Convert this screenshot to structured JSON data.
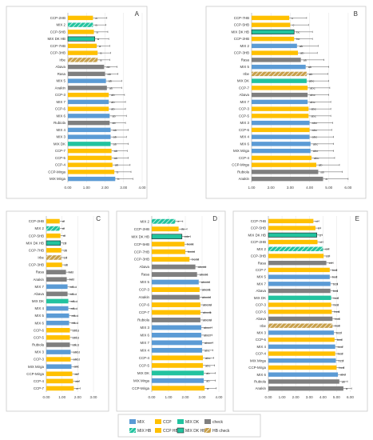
{
  "colors": {
    "MIX": "#5B9BD5",
    "CCP": "#FFC000",
    "MIX DK": "#22C39F",
    "check": "#7F7F7F",
    "MIX HB": "#22C39F",
    "CCP HB": "#FFC000",
    "MIX DK HB": "#22C39F",
    "HB check": "#C8A04B"
  },
  "legend": [
    {
      "key": "MIX",
      "label": "MIX",
      "hatch": false
    },
    {
      "key": "CCP",
      "label": "CCP",
      "hatch": false
    },
    {
      "key": "MIX DK",
      "label": "MIX DK",
      "hatch": false
    },
    {
      "key": "check",
      "label": "check",
      "hatch": false
    },
    {
      "key": "MIX HB",
      "label": "MIX HB",
      "hatch": true
    },
    {
      "key": "CCP HB",
      "label": "CCP HB",
      "hatch": false
    },
    {
      "key": "MIX DK HB",
      "label": "MIX DK HB",
      "hatch": false
    },
    {
      "key": "HB check",
      "label": "HB check",
      "hatch": true
    }
  ],
  "chart_data": [
    {
      "panel": "A",
      "type": "bar",
      "orientation": "horizontal",
      "xlim": [
        0,
        4
      ],
      "xticks": [
        "0.00",
        "1.00",
        "2.00",
        "3.00",
        "4.00"
      ],
      "categories": [
        "CCP-2HB",
        "MIX 2",
        "CCP-5HB",
        "MIX DK HB",
        "CCP-7HB",
        "CCP-3HB",
        "Irbe",
        "Abava",
        "Rasa",
        "MIX 5",
        "Anakin",
        "CCP-3",
        "MIX 7",
        "CCP-6",
        "MIX 6",
        "Rubiola",
        "MIX 4",
        "MIX 3",
        "MIX DK",
        "CCP-7",
        "CCP-5",
        "CCP-4",
        "CCP-Mirga",
        "MIX Mirga"
      ],
      "groups": [
        "CCP HB",
        "MIX HB",
        "CCP HB",
        "MIX DK HB",
        "CCP HB",
        "CCP HB",
        "HB check",
        "check",
        "check",
        "MIX",
        "check",
        "CCP",
        "MIX",
        "CCP",
        "MIX",
        "check",
        "MIX",
        "MIX",
        "MIX DK",
        "CCP",
        "CCP",
        "CCP",
        "CCP",
        "MIX"
      ],
      "values": [
        1.35,
        1.35,
        1.4,
        1.45,
        1.55,
        1.6,
        1.6,
        1.95,
        2.0,
        2.05,
        2.1,
        2.2,
        2.2,
        2.2,
        2.25,
        2.25,
        2.3,
        2.3,
        2.3,
        2.35,
        2.35,
        2.4,
        2.5,
        2.55
      ],
      "errors": [
        0.75,
        0.7,
        0.75,
        0.75,
        0.7,
        0.7,
        0.65,
        0.7,
        0.7,
        0.85,
        0.8,
        0.85,
        0.9,
        0.9,
        0.9,
        0.85,
        0.95,
        0.85,
        0.95,
        0.85,
        0.9,
        0.95,
        0.9,
        0.95
      ],
      "labels": [
        "a",
        "a",
        "a",
        "a",
        "a",
        "a",
        "a",
        "ab",
        "ab",
        "ab",
        "ab",
        "ab",
        "ab",
        "ab",
        "ab",
        "ab",
        "ab",
        "ab",
        "ab",
        "ab",
        "ab",
        "ab",
        "b",
        "b"
      ]
    },
    {
      "panel": "B",
      "type": "bar",
      "orientation": "horizontal",
      "xlim": [
        1,
        6.5
      ],
      "xticks": [
        "1.00",
        "2.00",
        "3.00",
        "4.00",
        "5.00",
        "6.00"
      ],
      "categories": [
        "CCP-7HB",
        "CCP-5HB",
        "MIX DK HB",
        "CCP-2HB",
        "MIX 2",
        "CCP-3HB",
        "Rasa",
        "MIX 5",
        "Irbe",
        "MIX DK",
        "CCP-7",
        "Abava",
        "MIX 7",
        "CCP-3",
        "CCP-5",
        "MIX 3",
        "CCP-6",
        "MIX 4",
        "MIX 6",
        "MIX Mirga",
        "CCP-4",
        "CCP-Mirga",
        "Rubiola",
        "Anakin"
      ],
      "groups": [
        "CCP HB",
        "CCP HB",
        "MIX DK HB",
        "CCP HB",
        "MIX",
        "CCP HB",
        "check",
        "MIX",
        "HB check",
        "MIX DK",
        "CCP",
        "check",
        "MIX",
        "CCP",
        "CCP",
        "MIX",
        "CCP",
        "MIX",
        "MIX",
        "MIX",
        "CCP",
        "CCP",
        "check",
        "check"
      ],
      "values": [
        2.95,
        3.0,
        3.2,
        3.2,
        3.35,
        3.4,
        3.55,
        3.8,
        3.85,
        3.85,
        3.9,
        3.9,
        3.9,
        3.95,
        3.95,
        4.0,
        4.0,
        4.0,
        4.05,
        4.05,
        4.1,
        4.35,
        4.45,
        4.7
      ],
      "errors": [
        0.9,
        0.95,
        0.95,
        0.95,
        1.1,
        1.0,
        1.2,
        1.2,
        1.1,
        1.15,
        1.15,
        1.1,
        1.2,
        1.15,
        1.15,
        1.2,
        1.15,
        1.25,
        1.2,
        1.2,
        1.2,
        1.2,
        1.25,
        1.3
      ],
      "labels": [
        "c",
        "c",
        "bc",
        "bc",
        "ab",
        "ab",
        "ab",
        "ab",
        "ab",
        "abc",
        "abc",
        "abc",
        "abc",
        "abc",
        "abc",
        "abc",
        "abc",
        "abc",
        "abc",
        "abc",
        "abc",
        "ab",
        "ab",
        "a"
      ]
    },
    {
      "panel": "C",
      "type": "bar",
      "orientation": "horizontal",
      "xlim": [
        0,
        3
      ],
      "xticks": [
        "0.00",
        "1.00",
        "2.00",
        "3.00"
      ],
      "categories": [
        "CCP-2HB",
        "MIX 2",
        "CCP-5HB",
        "MIX DK HB",
        "CCP-7HB",
        "Irbe",
        "CCP-3HB",
        "Rasa",
        "Anakin",
        "MIX 7",
        "Abava",
        "MIX DK",
        "MIX 4",
        "MIX 5",
        "MIX 6",
        "CCP-6",
        "CCP-5",
        "Rubiola",
        "MIX 3",
        "CCP-3",
        "MIX Mirga",
        "CCP-Mirga",
        "CCP-4",
        "CCP-7"
      ],
      "groups": [
        "CCP HB",
        "MIX HB",
        "CCP HB",
        "MIX DK HB",
        "CCP HB",
        "HB check",
        "CCP HB",
        "check",
        "check",
        "MIX",
        "check",
        "MIX DK",
        "MIX",
        "MIX",
        "MIX",
        "CCP",
        "CCP",
        "check",
        "MIX",
        "CCP",
        "MIX",
        "CCP",
        "CCP",
        "CCP"
      ],
      "values": [
        0.85,
        0.85,
        0.9,
        0.9,
        0.95,
        0.95,
        1.0,
        1.25,
        1.3,
        1.35,
        1.35,
        1.4,
        1.4,
        1.45,
        1.45,
        1.5,
        1.5,
        1.5,
        1.55,
        1.55,
        1.6,
        1.65,
        1.7,
        1.75
      ],
      "errors": [
        0.3,
        0.3,
        0.3,
        0.35,
        0.3,
        0.35,
        0.3,
        0.35,
        0.35,
        0.35,
        0.35,
        0.35,
        0.35,
        0.35,
        0.35,
        0.4,
        0.4,
        0.35,
        0.4,
        0.4,
        0.4,
        0.4,
        0.4,
        0.4
      ],
      "labels": [
        "d",
        "d",
        "d",
        "cd",
        "cd",
        "cd",
        "cd",
        "bcd",
        "bcd",
        "abcd",
        "abcd",
        "abcd",
        "abcd",
        "abcd",
        "abcd",
        "abcd",
        "abcd",
        "abcd",
        "abcd",
        "abcd",
        "abc",
        "ab",
        "ab",
        "a"
      ]
    },
    {
      "panel": "D",
      "type": "bar",
      "orientation": "horizontal",
      "xlim": [
        0,
        4
      ],
      "xticks": [
        "0.00",
        "1.00",
        "2.00",
        "3.00",
        "4.00"
      ],
      "categories": [
        "MIX 2",
        "CCP-2HB",
        "MIX DK HB",
        "CCP-5HB",
        "CCP-7HB",
        "CCP-3HB",
        "Abava",
        "Rasa",
        "MIX 5",
        "CCP-3",
        "Anakin",
        "CCP-6",
        "CCP-7",
        "Rubiola",
        "MIX 3",
        "MIX 6",
        "MIX 7",
        "MIX 4",
        "CCP-4",
        "CCP-5",
        "MIX DK",
        "MIX Mirga",
        "CCP-Mirga"
      ],
      "groups": [
        "MIX HB",
        "CCP HB",
        "MIX DK HB",
        "CCP HB",
        "CCP HB",
        "CCP HB",
        "check",
        "check",
        "MIX",
        "CCP",
        "check",
        "CCP",
        "CCP",
        "check",
        "MIX",
        "MIX",
        "MIX",
        "MIX",
        "CCP",
        "CCP",
        "MIX DK",
        "MIX",
        "CCP"
      ],
      "values": [
        1.4,
        1.6,
        1.8,
        1.95,
        2.0,
        2.25,
        2.6,
        2.7,
        2.8,
        2.85,
        2.85,
        2.9,
        2.9,
        2.9,
        2.95,
        2.95,
        3.0,
        3.0,
        3.05,
        3.05,
        3.1,
        3.1,
        3.15
      ],
      "errors": [
        0.45,
        0.5,
        0.5,
        0.5,
        0.55,
        0.55,
        0.6,
        0.6,
        0.65,
        0.6,
        0.65,
        0.65,
        0.6,
        0.65,
        0.65,
        0.65,
        0.65,
        0.65,
        0.65,
        0.7,
        0.7,
        0.7,
        0.7
      ],
      "labels": [
        "e",
        "de",
        "cde",
        "bcde",
        "bcde",
        "bcde",
        "abcde",
        "abcde",
        "abcde",
        "abcde",
        "abcde",
        "abcde",
        "abcde",
        "abcde",
        "abcd",
        "abcd",
        "abcd",
        "abc",
        "abc",
        "abc",
        "ab",
        "ab",
        "a"
      ]
    },
    {
      "panel": "E",
      "type": "bar",
      "orientation": "horizontal",
      "xlim": [
        0,
        6.5
      ],
      "xticks": [
        "0.00",
        "1.00",
        "2.00",
        "3.00",
        "4.00",
        "5.00",
        "6.00"
      ],
      "categories": [
        "CCP-7HB",
        "CCP-5HB",
        "MIX DK HB",
        "CCP-2HB",
        "MIX 2",
        "CCP-3HB",
        "Rasa",
        "CCP-7",
        "MIX 5",
        "MIX 7",
        "Abava",
        "MIX DK",
        "CCP-3",
        "CCP-5",
        "Abava",
        "Irbe",
        "MIX 3",
        "CCP-6",
        "MIX 4",
        "CCP-4",
        "MIX Mirga",
        "CCP-Mirga",
        "MIX 6",
        "Rubiola",
        "Anakin"
      ],
      "groups": [
        "CCP HB",
        "CCP HB",
        "MIX DK HB",
        "CCP HB",
        "MIX HB",
        "CCP HB",
        "check",
        "CCP",
        "MIX",
        "MIX",
        "check",
        "MIX DK",
        "CCP",
        "CCP",
        "check",
        "HB check",
        "MIX",
        "CCP",
        "MIX",
        "CCP",
        "MIX",
        "CCP",
        "MIX",
        "check",
        "check"
      ],
      "values": [
        3.3,
        3.45,
        3.55,
        3.6,
        4.0,
        4.05,
        4.25,
        4.5,
        4.5,
        4.55,
        4.55,
        4.6,
        4.6,
        4.65,
        4.7,
        4.7,
        4.8,
        4.85,
        4.9,
        4.9,
        4.95,
        5.0,
        5.1,
        5.2,
        5.5
      ],
      "errors": [
        0.4,
        0.4,
        0.4,
        0.4,
        0.45,
        0.45,
        0.5,
        0.5,
        0.5,
        0.5,
        0.5,
        0.5,
        0.5,
        0.55,
        0.5,
        0.5,
        0.55,
        0.55,
        0.55,
        0.55,
        0.55,
        0.55,
        0.55,
        0.6,
        0.6
      ],
      "labels": [
        "d",
        "d",
        "d",
        "d",
        "cd",
        "cd",
        "cd",
        "bcd",
        "bcd",
        "bcd",
        "bcd",
        "bcd",
        "bcd",
        "bcd",
        "bcd",
        "bcd",
        "bcd",
        "bcd",
        "bcd",
        "bcd",
        "bcd",
        "bcd",
        "abc",
        "ab",
        "a"
      ]
    }
  ]
}
